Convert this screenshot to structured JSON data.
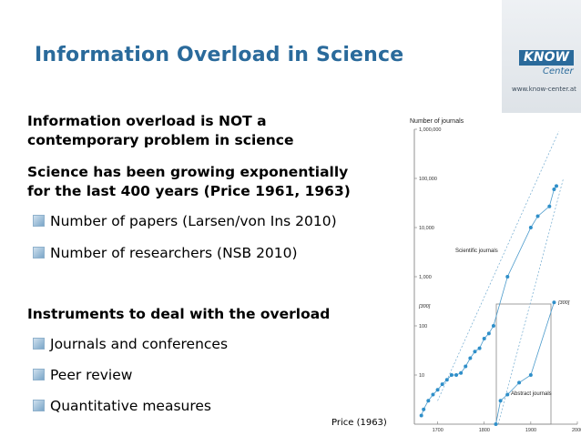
{
  "slide": {
    "title": "Information Overload in Science",
    "logo": {
      "brand": "KNOW",
      "sub": "Center",
      "url": "www.know-center.at"
    },
    "intro_lines": [
      "Information overload is NOT a",
      "contemporary problem  in science",
      "Science has been growing exponentially",
      "for the last 400 years (Price 1961, 1963)"
    ],
    "growth_bullets": [
      "Number of papers (Larsen/von Ins 2010)",
      "Number of researchers (NSB 2010)"
    ],
    "instruments_heading": "Instruments to deal with the overload",
    "instrument_bullets": [
      "Journals and conferences",
      "Peer review",
      "Quantitative measures"
    ],
    "caption": "Price (1963)"
  },
  "chart_data": {
    "type": "scatter",
    "title": "",
    "ylabel": "Number of journals",
    "y_scale": "log",
    "ylim": [
      1,
      1000000
    ],
    "xlim": [
      1650,
      2000
    ],
    "x_ticks": [
      "1700",
      "1800",
      "1900",
      "2000"
    ],
    "y_ticks": [
      "1,000,000",
      "100,000",
      "10,000",
      "1,000",
      "100",
      "10"
    ],
    "bracket_labels": [
      "[300]",
      "[300]"
    ],
    "annotations": [
      "Scientific journals",
      "Abstract journals"
    ],
    "series": [
      {
        "name": "Scientific journals",
        "x": [
          1665,
          1670,
          1680,
          1690,
          1700,
          1710,
          1720,
          1730,
          1740,
          1750,
          1760,
          1770,
          1780,
          1790,
          1800,
          1810,
          1820,
          1850,
          1900,
          1915,
          1940,
          1950,
          1955
        ],
        "y": [
          1.5,
          2,
          3,
          4,
          5,
          6.5,
          8,
          10,
          10,
          11,
          15,
          22,
          30,
          35,
          55,
          70,
          100,
          1000,
          10000,
          17000,
          27000,
          60000,
          70000
        ]
      },
      {
        "name": "Abstract journals",
        "x": [
          1825,
          1835,
          1850,
          1875,
          1900,
          1950
        ],
        "y": [
          1,
          3,
          4,
          7,
          10,
          300
        ]
      }
    ]
  }
}
